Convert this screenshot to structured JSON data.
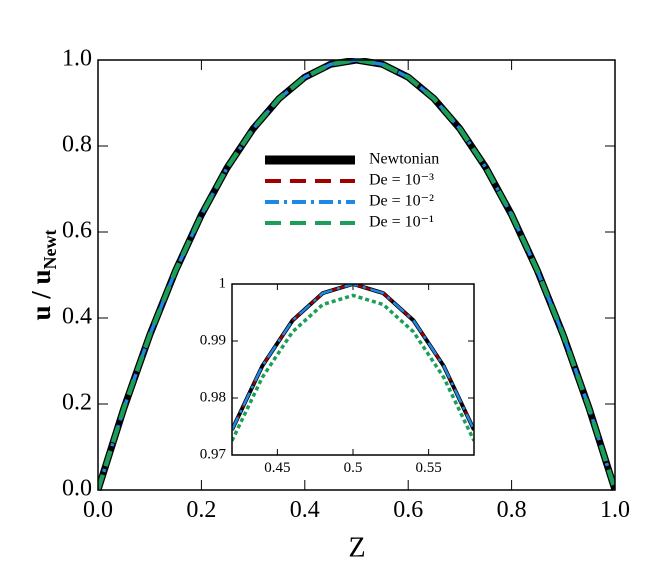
{
  "chart_data": [
    {
      "type": "line",
      "x_label": "Z",
      "y_label": "u / u",
      "y_label_subscript": "Newt",
      "x": [
        0,
        0.05,
        0.1,
        0.15,
        0.2,
        0.25,
        0.3,
        0.35,
        0.4,
        0.45,
        0.5,
        0.55,
        0.6,
        0.65,
        0.7,
        0.75,
        0.8,
        0.85,
        0.9,
        0.95,
        1
      ],
      "series": [
        {
          "name": "Newtonian",
          "color": "#000000",
          "dash": "solid",
          "values": [
            0,
            0.19,
            0.36,
            0.51,
            0.64,
            0.75,
            0.84,
            0.91,
            0.96,
            0.99,
            1,
            0.99,
            0.96,
            0.91,
            0.84,
            0.75,
            0.64,
            0.51,
            0.36,
            0.19,
            0
          ]
        },
        {
          "name": "De = 10⁻³",
          "color": "#a00000",
          "dash": "dashed",
          "values": [
            0,
            0.19,
            0.36,
            0.51,
            0.64,
            0.75,
            0.84,
            0.91,
            0.96,
            0.99,
            1,
            0.99,
            0.96,
            0.91,
            0.84,
            0.75,
            0.64,
            0.51,
            0.36,
            0.19,
            0
          ]
        },
        {
          "name": "De = 10⁻²",
          "color": "#1e88e5",
          "dash": "dashdot",
          "values": [
            0,
            0.19,
            0.36,
            0.51,
            0.64,
            0.75,
            0.84,
            0.91,
            0.96,
            0.99,
            1,
            0.99,
            0.96,
            0.91,
            0.84,
            0.75,
            0.64,
            0.51,
            0.36,
            0.19,
            0
          ]
        },
        {
          "name": "De = 10⁻¹",
          "color": "#1a9e5a",
          "dash": "dashed",
          "values": [
            0,
            0.19,
            0.36,
            0.51,
            0.64,
            0.75,
            0.84,
            0.91,
            0.96,
            0.99,
            1,
            0.99,
            0.96,
            0.91,
            0.84,
            0.75,
            0.64,
            0.51,
            0.36,
            0.19,
            0
          ]
        }
      ],
      "xlim": [
        0,
        1
      ],
      "ylim": [
        0,
        1
      ],
      "xticks": [
        {
          "value": 0,
          "label": "0.0"
        },
        0.2,
        0.4,
        0.6,
        0.8,
        {
          "value": 1,
          "label": "1.0"
        }
      ],
      "yticks": [
        {
          "value": 0,
          "label": "0.0"
        },
        0.2,
        0.4,
        0.6,
        0.8,
        {
          "value": 1,
          "label": "1.0"
        }
      ],
      "legend": true
    },
    {
      "type": "line",
      "x": [
        0.42,
        0.44,
        0.46,
        0.48,
        0.5,
        0.52,
        0.54,
        0.56,
        0.58
      ],
      "series": [
        {
          "color": "#000000",
          "dash": "solid",
          "values": [
            0.9744,
            0.9856,
            0.9936,
            0.9984,
            1,
            0.9984,
            0.9936,
            0.9856,
            0.9744
          ]
        },
        {
          "color": "#a00000",
          "dash": "dashed",
          "values": [
            0.9744,
            0.9856,
            0.9936,
            0.9984,
            1,
            0.9984,
            0.9936,
            0.9856,
            0.9744
          ]
        },
        {
          "color": "#1e88e5",
          "dash": "dashdot",
          "values": [
            0.9744,
            0.9856,
            0.9936,
            0.9984,
            1,
            0.9984,
            0.9936,
            0.9856,
            0.9744
          ]
        },
        {
          "color": "#1a9e5a",
          "dash": "dotted",
          "values": [
            0.9725,
            0.9836,
            0.9916,
            0.9964,
            0.998,
            0.9964,
            0.9916,
            0.9836,
            0.9725
          ]
        }
      ],
      "xlim": [
        0.42,
        0.58
      ],
      "ylim": [
        0.97,
        1
      ],
      "xticks": [
        0.45,
        0.5,
        0.55
      ],
      "yticks": [
        0.97,
        0.98,
        0.99,
        1
      ],
      "legend": false
    }
  ]
}
